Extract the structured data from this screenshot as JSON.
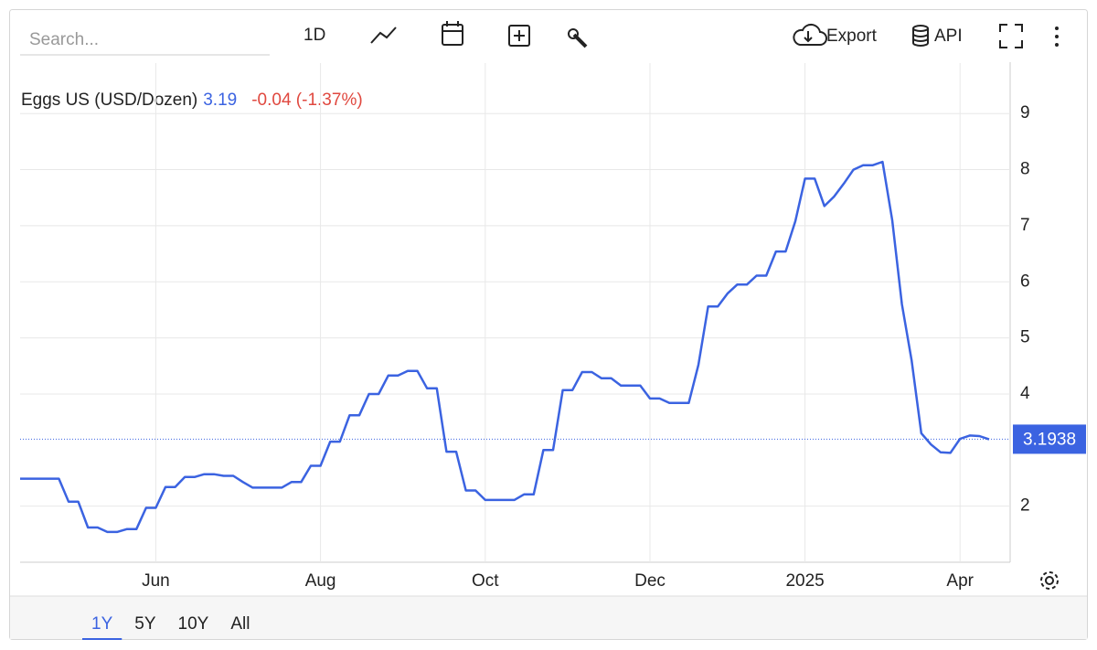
{
  "search_placeholder": "Search...",
  "toolbar": {
    "interval": "1D",
    "export": "Export",
    "api": "API"
  },
  "chart_data": {
    "type": "line",
    "series": [
      {
        "name": "Eggs US (USD/Dozen)",
        "color": "#3b63e1",
        "values": [
          2.49,
          2.49,
          2.49,
          2.49,
          2.49,
          2.08,
          2.08,
          1.62,
          1.62,
          1.54,
          1.54,
          1.59,
          1.59,
          1.97,
          1.97,
          2.34,
          2.34,
          2.52,
          2.52,
          2.57,
          2.57,
          2.54,
          2.54,
          2.43,
          2.33,
          2.33,
          2.33,
          2.33,
          2.43,
          2.43,
          2.72,
          2.72,
          3.15,
          3.15,
          3.62,
          3.62,
          4.0,
          4.0,
          4.33,
          4.33,
          4.41,
          4.41,
          4.1,
          4.1,
          2.97,
          2.97,
          2.28,
          2.28,
          2.11,
          2.11,
          2.11,
          2.11,
          2.21,
          2.21,
          3.0,
          3.0,
          4.07,
          4.07,
          4.39,
          4.39,
          4.28,
          4.28,
          4.15,
          4.15,
          4.15,
          3.92,
          3.92,
          3.84,
          3.84,
          3.84,
          4.52,
          5.56,
          5.56,
          5.79,
          5.95,
          5.95,
          6.11,
          6.11,
          6.54,
          6.54,
          7.08,
          7.84,
          7.84,
          7.35,
          7.52,
          7.75,
          8.0,
          8.08,
          8.08,
          8.14,
          7.1,
          5.6,
          4.6,
          3.3,
          3.1,
          2.96,
          2.95,
          3.2,
          3.26,
          3.25,
          3.19
        ]
      }
    ],
    "categories": [
      null,
      null,
      null,
      null,
      null,
      null,
      null,
      null,
      null,
      null,
      null,
      null,
      null,
      null,
      "Jun",
      null,
      null,
      null,
      null,
      null,
      null,
      null,
      null,
      null,
      null,
      null,
      null,
      null,
      null,
      null,
      null,
      "Aug",
      null,
      null,
      null,
      null,
      null,
      null,
      null,
      null,
      null,
      null,
      null,
      null,
      null,
      null,
      null,
      null,
      "Oct",
      null,
      null,
      null,
      null,
      null,
      null,
      null,
      null,
      null,
      null,
      null,
      null,
      null,
      null,
      null,
      null,
      "Dec",
      null,
      null,
      null,
      null,
      null,
      null,
      null,
      null,
      null,
      null,
      null,
      null,
      null,
      null,
      null,
      "2025",
      null,
      null,
      null,
      null,
      null,
      null,
      null,
      null,
      null,
      null,
      null,
      null,
      null,
      null,
      null,
      "Apr",
      null,
      null,
      null
    ],
    "last_value": 3.19,
    "change": "-0.04 (-1.37%)",
    "change_color": "#e0483f",
    "price_marker": 3.1938,
    "ylim": [
      1,
      9.9
    ],
    "yticks": [
      2,
      4,
      5,
      6,
      7,
      8,
      9
    ],
    "grid": true
  },
  "ranges": [
    "1Y",
    "5Y",
    "10Y",
    "All"
  ]
}
